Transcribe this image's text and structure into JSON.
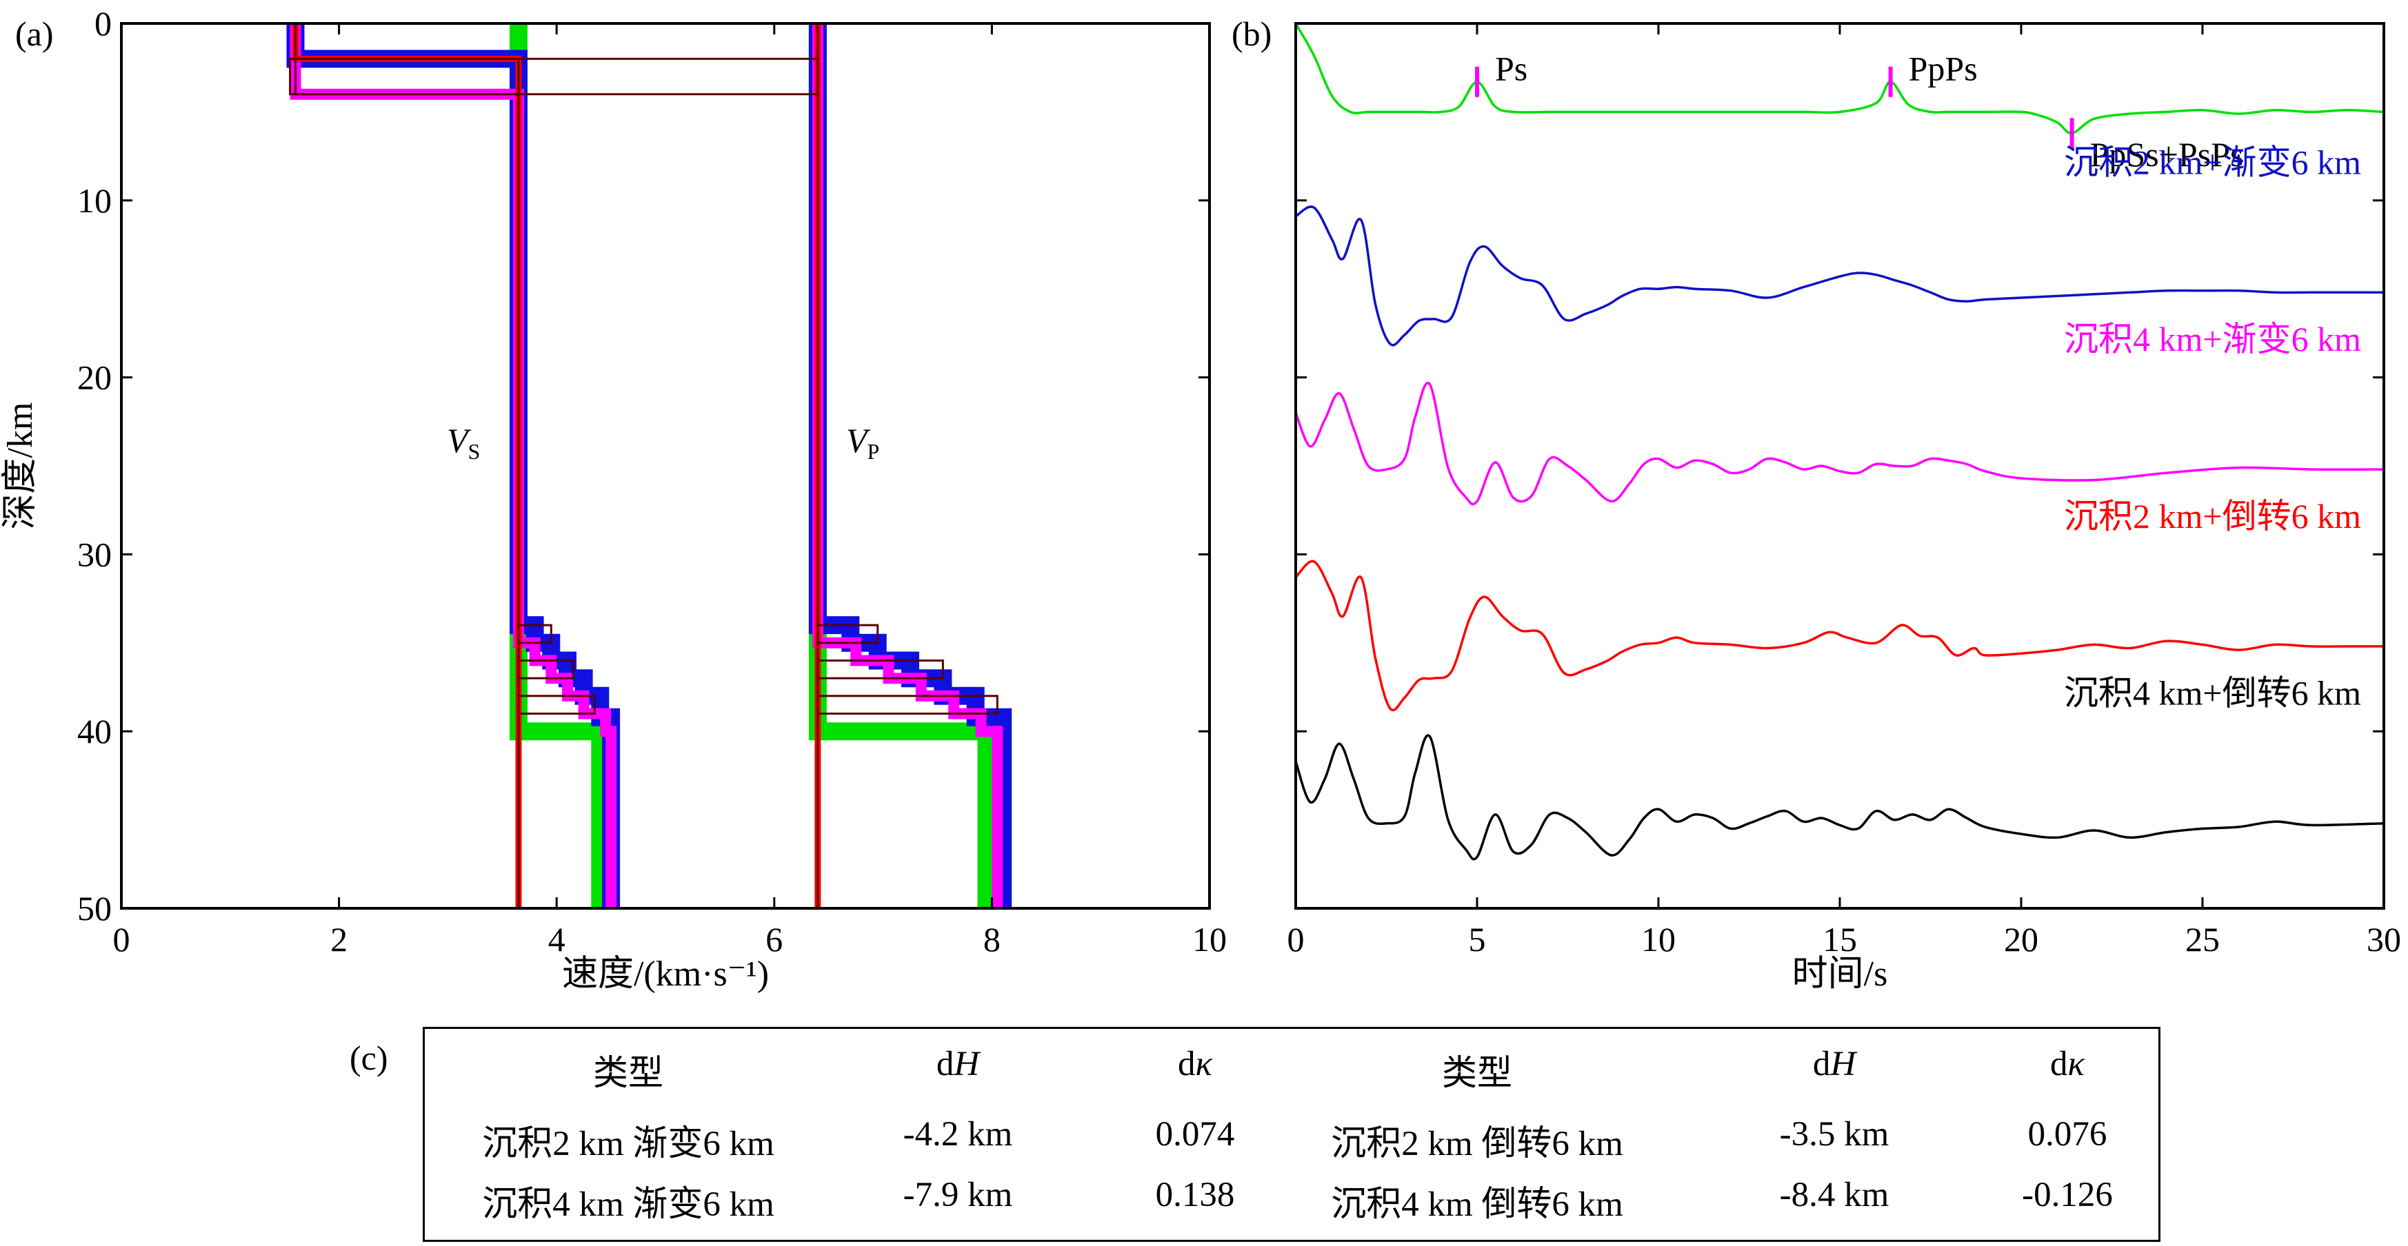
{
  "panel_labels": {
    "a": "(a)",
    "b": "(b)",
    "c": "(c)"
  },
  "chart_data": [
    {
      "type": "line",
      "panel": "(a)",
      "title": "",
      "xlabel": "速度/(km·s⁻¹)",
      "ylabel": "深度/km",
      "xlim": [
        0,
        10
      ],
      "ylim": [
        50,
        0
      ],
      "xticks": [
        "0",
        "2",
        "4",
        "6",
        "8",
        "10"
      ],
      "yticks": [
        "0",
        "10",
        "20",
        "30",
        "40",
        "50"
      ],
      "velocity_labels": {
        "vs_main": "V",
        "vs_sub": "S",
        "vp_main": "V",
        "vp_sub": "P"
      },
      "series": [
        {
          "name": "Vs green",
          "color": "#00e000",
          "points": [
            [
              3.65,
              0
            ],
            [
              3.65,
              34.5
            ],
            [
              3.65,
              40
            ],
            [
              4.4,
              40
            ],
            [
              4.4,
              50
            ]
          ]
        },
        {
          "name": "Vp green",
          "color": "#00e000",
          "points": [
            [
              6.4,
              0
            ],
            [
              6.4,
              34.5
            ],
            [
              6.4,
              40
            ],
            [
              7.95,
              40
            ],
            [
              7.95,
              50
            ]
          ]
        },
        {
          "name": "Vs blue (沉积2 km+渐变6 km)",
          "color": "#1010e0",
          "points": [
            [
              1.6,
              0
            ],
            [
              1.6,
              2
            ],
            [
              3.65,
              2
            ],
            [
              3.65,
              34
            ],
            [
              3.8,
              34
            ],
            [
              3.8,
              35
            ],
            [
              3.95,
              35
            ],
            [
              3.95,
              36
            ],
            [
              4.1,
              36
            ],
            [
              4.1,
              37
            ],
            [
              4.25,
              37
            ],
            [
              4.25,
              38
            ],
            [
              4.4,
              38
            ],
            [
              4.4,
              39.2
            ],
            [
              4.5,
              39.2
            ],
            [
              4.5,
              50
            ]
          ]
        },
        {
          "name": "Vp blue (沉积2 km+渐变6 km)",
          "color": "#1010e0",
          "points": [
            [
              6.4,
              0
            ],
            [
              6.4,
              2
            ],
            [
              6.4,
              34
            ],
            [
              6.7,
              34
            ],
            [
              6.7,
              35
            ],
            [
              6.95,
              35
            ],
            [
              6.95,
              36
            ],
            [
              7.25,
              36
            ],
            [
              7.25,
              37
            ],
            [
              7.55,
              37
            ],
            [
              7.55,
              38
            ],
            [
              7.85,
              38
            ],
            [
              7.85,
              39.2
            ],
            [
              8.1,
              39.2
            ],
            [
              8.1,
              50
            ]
          ]
        },
        {
          "name": "Vs magenta (沉积4 km+渐变6 km)",
          "color": "#ff00ff",
          "points": [
            [
              1.6,
              0
            ],
            [
              1.6,
              4
            ],
            [
              3.65,
              4
            ],
            [
              3.65,
              35
            ],
            [
              3.8,
              35
            ],
            [
              3.8,
              36
            ],
            [
              3.95,
              36
            ],
            [
              3.95,
              37
            ],
            [
              4.1,
              37
            ],
            [
              4.1,
              38
            ],
            [
              4.25,
              38
            ],
            [
              4.25,
              39
            ],
            [
              4.45,
              39
            ],
            [
              4.45,
              40
            ],
            [
              4.5,
              40
            ],
            [
              4.5,
              50
            ]
          ]
        },
        {
          "name": "Vp magenta (沉积4 km+渐变6 km)",
          "color": "#ff00ff",
          "points": [
            [
              6.4,
              0
            ],
            [
              6.4,
              4
            ],
            [
              6.4,
              35
            ],
            [
              6.75,
              35
            ],
            [
              6.75,
              36
            ],
            [
              7.05,
              36
            ],
            [
              7.05,
              37
            ],
            [
              7.35,
              37
            ],
            [
              7.35,
              38
            ],
            [
              7.65,
              38
            ],
            [
              7.65,
              39
            ],
            [
              7.9,
              39
            ],
            [
              7.9,
              40
            ],
            [
              8.05,
              40
            ],
            [
              8.05,
              50
            ]
          ]
        },
        {
          "name": "Vs red (沉积2 km+倒转6 km)",
          "color": "#ff0000",
          "points": [
            [
              1.6,
              0
            ],
            [
              1.6,
              2
            ],
            [
              3.65,
              2
            ],
            [
              3.65,
              50
            ]
          ]
        },
        {
          "name": "Vp red (沉积2 km+倒转6 km)",
          "color": "#ff0000",
          "points": [
            [
              6.4,
              0
            ],
            [
              6.4,
              2
            ],
            [
              6.4,
              50
            ]
          ]
        },
        {
          "name": "Vs dark (沉积4 km+倒转6 km)",
          "color": "#5a0000",
          "points": [
            [
              1.6,
              0
            ],
            [
              1.6,
              4
            ],
            [
              3.65,
              4
            ],
            [
              3.65,
              50
            ]
          ]
        },
        {
          "name": "Vp dark (沉积4 km+倒转6 km)",
          "color": "#5a0000",
          "points": [
            [
              6.4,
              0
            ],
            [
              6.4,
              4
            ],
            [
              6.4,
              50
            ]
          ]
        }
      ]
    },
    {
      "type": "line",
      "panel": "(b)",
      "title": "",
      "xlabel": "时间/s",
      "ylabel": "",
      "xlim": [
        0,
        30
      ],
      "xticks": [
        "0",
        "5",
        "10",
        "15",
        "20",
        "25",
        "30"
      ],
      "phase_markers": [
        {
          "label": "Ps",
          "t": 5.0
        },
        {
          "label": "PpPs",
          "t": 16.4
        },
        {
          "label": "PpSs+PsPs",
          "t": 21.4
        }
      ],
      "series": [
        {
          "name": "reference",
          "label": "",
          "color": "#00e000",
          "baseline_depth": 5,
          "x": [
            0,
            0.5,
            1,
            1.5,
            2,
            2.5,
            3,
            3.5,
            4,
            4.5,
            5,
            5.5,
            6,
            7,
            8,
            9,
            10,
            11,
            12,
            13,
            14,
            15,
            16,
            16.4,
            16.9,
            17.5,
            18,
            19,
            20,
            20.5,
            21,
            21.4,
            22,
            23,
            24,
            25,
            26,
            27,
            28,
            29,
            30
          ],
          "y": [
            5,
            3.2,
            0.9,
            0,
            0,
            0,
            0,
            0,
            0,
            0.3,
            1.7,
            0.3,
            0,
            0,
            0,
            0,
            0,
            0,
            0,
            0,
            0,
            0,
            0.5,
            1.7,
            0.4,
            0,
            0,
            0,
            0,
            -0.2,
            -0.6,
            -1.2,
            -0.4,
            -0.1,
            0,
            0.1,
            -0.1,
            0.1,
            0,
            0.1,
            0
          ]
        },
        {
          "name": "沉积2 km+渐变6 km",
          "label": "沉积2 km+渐变6 km",
          "color": "#1010c8",
          "baseline_depth": 15.2,
          "x": [
            0,
            0.5,
            1,
            1.3,
            1.8,
            2.2,
            2.6,
            3,
            3.4,
            3.8,
            4.3,
            4.8,
            5.2,
            5.7,
            6.2,
            6.8,
            7.4,
            8,
            8.6,
            9,
            9.5,
            10,
            10.5,
            11,
            12,
            13,
            14,
            15,
            15.5,
            16,
            16.5,
            17,
            17.5,
            18,
            18.5,
            19,
            20,
            21,
            22,
            23,
            24,
            25,
            26,
            27,
            28,
            29,
            30
          ],
          "y": [
            4.3,
            4.8,
            3,
            1.9,
            4.1,
            -0.7,
            -2.9,
            -2.4,
            -1.6,
            -1.5,
            -1.4,
            1.7,
            2.6,
            1.5,
            0.8,
            0.4,
            -1.5,
            -1.2,
            -0.7,
            -0.2,
            0.2,
            0.2,
            0.3,
            0.2,
            0.1,
            -0.3,
            0.3,
            0.9,
            1.1,
            1,
            0.7,
            0.4,
            0,
            -0.4,
            -0.5,
            -0.4,
            -0.3,
            -0.2,
            -0.1,
            0,
            0.1,
            0.1,
            0.1,
            0,
            0,
            0,
            0
          ]
        },
        {
          "name": "沉积4 km+渐变6 km",
          "label": "沉积4 km+渐变6 km",
          "color": "#ff00ff",
          "baseline_depth": 25.2,
          "x": [
            0,
            0.4,
            0.8,
            1.2,
            1.6,
            2,
            2.5,
            3,
            3.3,
            3.7,
            4.2,
            4.7,
            5,
            5.5,
            6,
            6.5,
            7,
            7.5,
            8,
            8.7,
            9.2,
            9.6,
            10,
            10.5,
            11,
            11.5,
            12,
            12.5,
            13,
            13.5,
            14,
            14.5,
            15,
            15.5,
            16,
            16.5,
            17,
            17.5,
            18,
            18.5,
            19,
            20,
            22,
            24,
            26,
            28,
            30
          ],
          "y": [
            3.2,
            1.3,
            2.8,
            4.3,
            2.3,
            0.2,
            0,
            0.6,
            3,
            4.8,
            0.1,
            -1.6,
            -1.8,
            0.4,
            -1.6,
            -1.5,
            0.6,
            0.2,
            -0.6,
            -1.8,
            -0.8,
            0.3,
            0.6,
            0.1,
            0.5,
            0.3,
            -0.2,
            0,
            0.6,
            0.4,
            0,
            0.2,
            -0.1,
            -0.2,
            0.3,
            0.2,
            0.2,
            0.6,
            0.5,
            0.3,
            -0.1,
            -0.5,
            -0.6,
            -0.2,
            0.1,
            0,
            0
          ]
        },
        {
          "name": "沉积2 km+倒转6 km",
          "label": "沉积2 km+倒转6 km",
          "color": "#ff0000",
          "baseline_depth": 35.2,
          "x": [
            0,
            0.5,
            1,
            1.3,
            1.8,
            2.2,
            2.6,
            3,
            3.4,
            3.8,
            4.3,
            4.8,
            5.2,
            5.7,
            6.2,
            6.8,
            7.4,
            8,
            8.6,
            9,
            9.5,
            10,
            10.5,
            11,
            12,
            13,
            14,
            14.7,
            15.2,
            16,
            16.7,
            17.2,
            17.7,
            18.2,
            18.7,
            19,
            20,
            21,
            22,
            23,
            24,
            25,
            26,
            27,
            28,
            29,
            30
          ],
          "y": [
            3.9,
            4.8,
            3,
            1.7,
            3.9,
            -0.7,
            -3.5,
            -2.9,
            -1.9,
            -1.8,
            -1.4,
            1.6,
            2.8,
            1.7,
            0.9,
            0.7,
            -1.5,
            -1.3,
            -0.8,
            -0.3,
            0.1,
            0.2,
            0.5,
            0.2,
            0.1,
            -0.1,
            0.2,
            0.8,
            0.5,
            0.2,
            1.2,
            0.6,
            0.5,
            -0.5,
            -0.1,
            -0.5,
            -0.4,
            -0.2,
            0.1,
            -0.1,
            0.3,
            0.1,
            -0.2,
            0.1,
            0,
            0,
            0
          ]
        },
        {
          "name": "沉积4 km+倒转6 km",
          "label": "沉积4 km+倒转6 km",
          "color": "#000000",
          "baseline_depth": 45.2,
          "x": [
            0,
            0.4,
            0.8,
            1.2,
            1.6,
            2,
            2.5,
            3,
            3.3,
            3.7,
            4.2,
            4.7,
            5,
            5.5,
            6,
            6.5,
            7,
            7.5,
            8,
            8.7,
            9.2,
            9.6,
            10,
            10.5,
            11,
            11.5,
            12,
            12.5,
            13,
            13.5,
            14,
            14.5,
            15,
            15.5,
            16,
            16.5,
            17,
            17.5,
            18,
            18.5,
            19,
            20,
            21,
            22,
            23,
            24,
            25,
            26,
            27,
            28,
            30
          ],
          "y": [
            3.5,
            1.2,
            2.5,
            4.5,
            2.5,
            0.3,
            0,
            0.4,
            2.9,
            4.9,
            0.2,
            -1.5,
            -1.9,
            0.5,
            -1.6,
            -1.2,
            0.5,
            0.3,
            -0.5,
            -1.8,
            -0.9,
            0.3,
            0.8,
            0.1,
            0.5,
            0.3,
            -0.3,
            0,
            0.4,
            0.7,
            0.1,
            0.3,
            -0.1,
            -0.3,
            0.7,
            0.2,
            0.5,
            0.2,
            0.8,
            0.3,
            -0.2,
            -0.6,
            -0.8,
            -0.4,
            -0.8,
            -0.5,
            -0.3,
            -0.2,
            0.1,
            -0.1,
            0
          ]
        }
      ]
    }
  ],
  "table": {
    "headers": [
      "类型",
      "dH",
      "dκ",
      "类型",
      "dH",
      "dκ"
    ],
    "rows": [
      [
        "沉积2 km 渐变6 km",
        "-4.2 km",
        "0.074",
        "沉积2 km 倒转6 km",
        "-3.5 km",
        "0.076"
      ],
      [
        "沉积4 km 渐变6 km",
        "-7.9 km",
        "0.138",
        "沉积4 km 倒转6 km",
        "-8.4 km",
        "-0.126"
      ]
    ]
  }
}
